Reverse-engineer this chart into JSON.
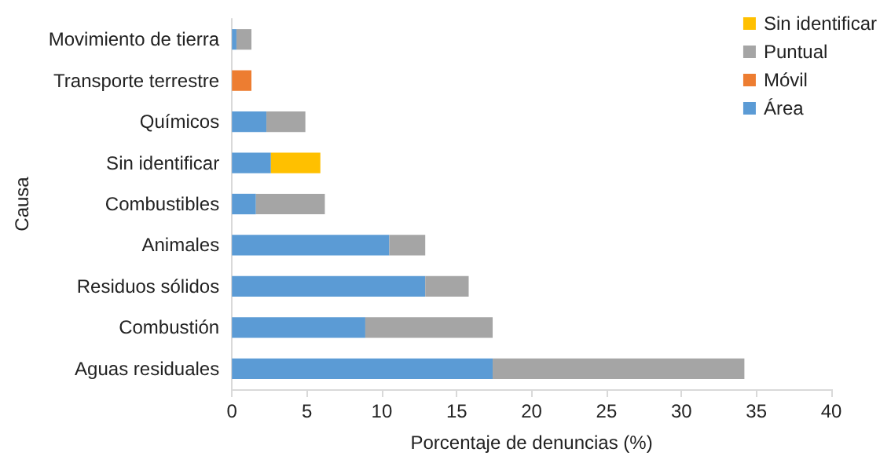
{
  "chart_data": {
    "type": "bar",
    "orientation": "horizontal",
    "stacked": true,
    "xlabel": "Porcentaje de denuncias (%)",
    "ylabel": "Causa",
    "categories": [
      "Movimiento de tierra",
      "Transporte terrestre",
      "Químicos",
      "Sin identificar",
      "Combustibles",
      "Animales",
      "Residuos sólidos",
      "Combustión",
      "Aguas residuales"
    ],
    "series": [
      {
        "name": "Área",
        "color": "#5b9bd5",
        "values": [
          0.3,
          null,
          2.3,
          2.6,
          1.6,
          10.5,
          12.9,
          8.9,
          17.4
        ]
      },
      {
        "name": "Móvil",
        "color": "#ed7d31",
        "values": [
          null,
          1.3,
          null,
          null,
          null,
          null,
          null,
          null,
          null
        ]
      },
      {
        "name": "Puntual",
        "color": "#a5a5a5",
        "values": [
          1.0,
          null,
          2.6,
          null,
          4.6,
          2.4,
          2.9,
          8.5,
          16.8
        ]
      },
      {
        "name": "Sin identificar",
        "color": "#ffc000",
        "values": [
          null,
          null,
          null,
          3.3,
          null,
          null,
          null,
          null,
          null
        ]
      }
    ],
    "xlim": [
      0,
      40
    ],
    "xticks": [
      0,
      5,
      10,
      15,
      20,
      25,
      30,
      35,
      40
    ],
    "grid": false,
    "legend": "top right"
  }
}
